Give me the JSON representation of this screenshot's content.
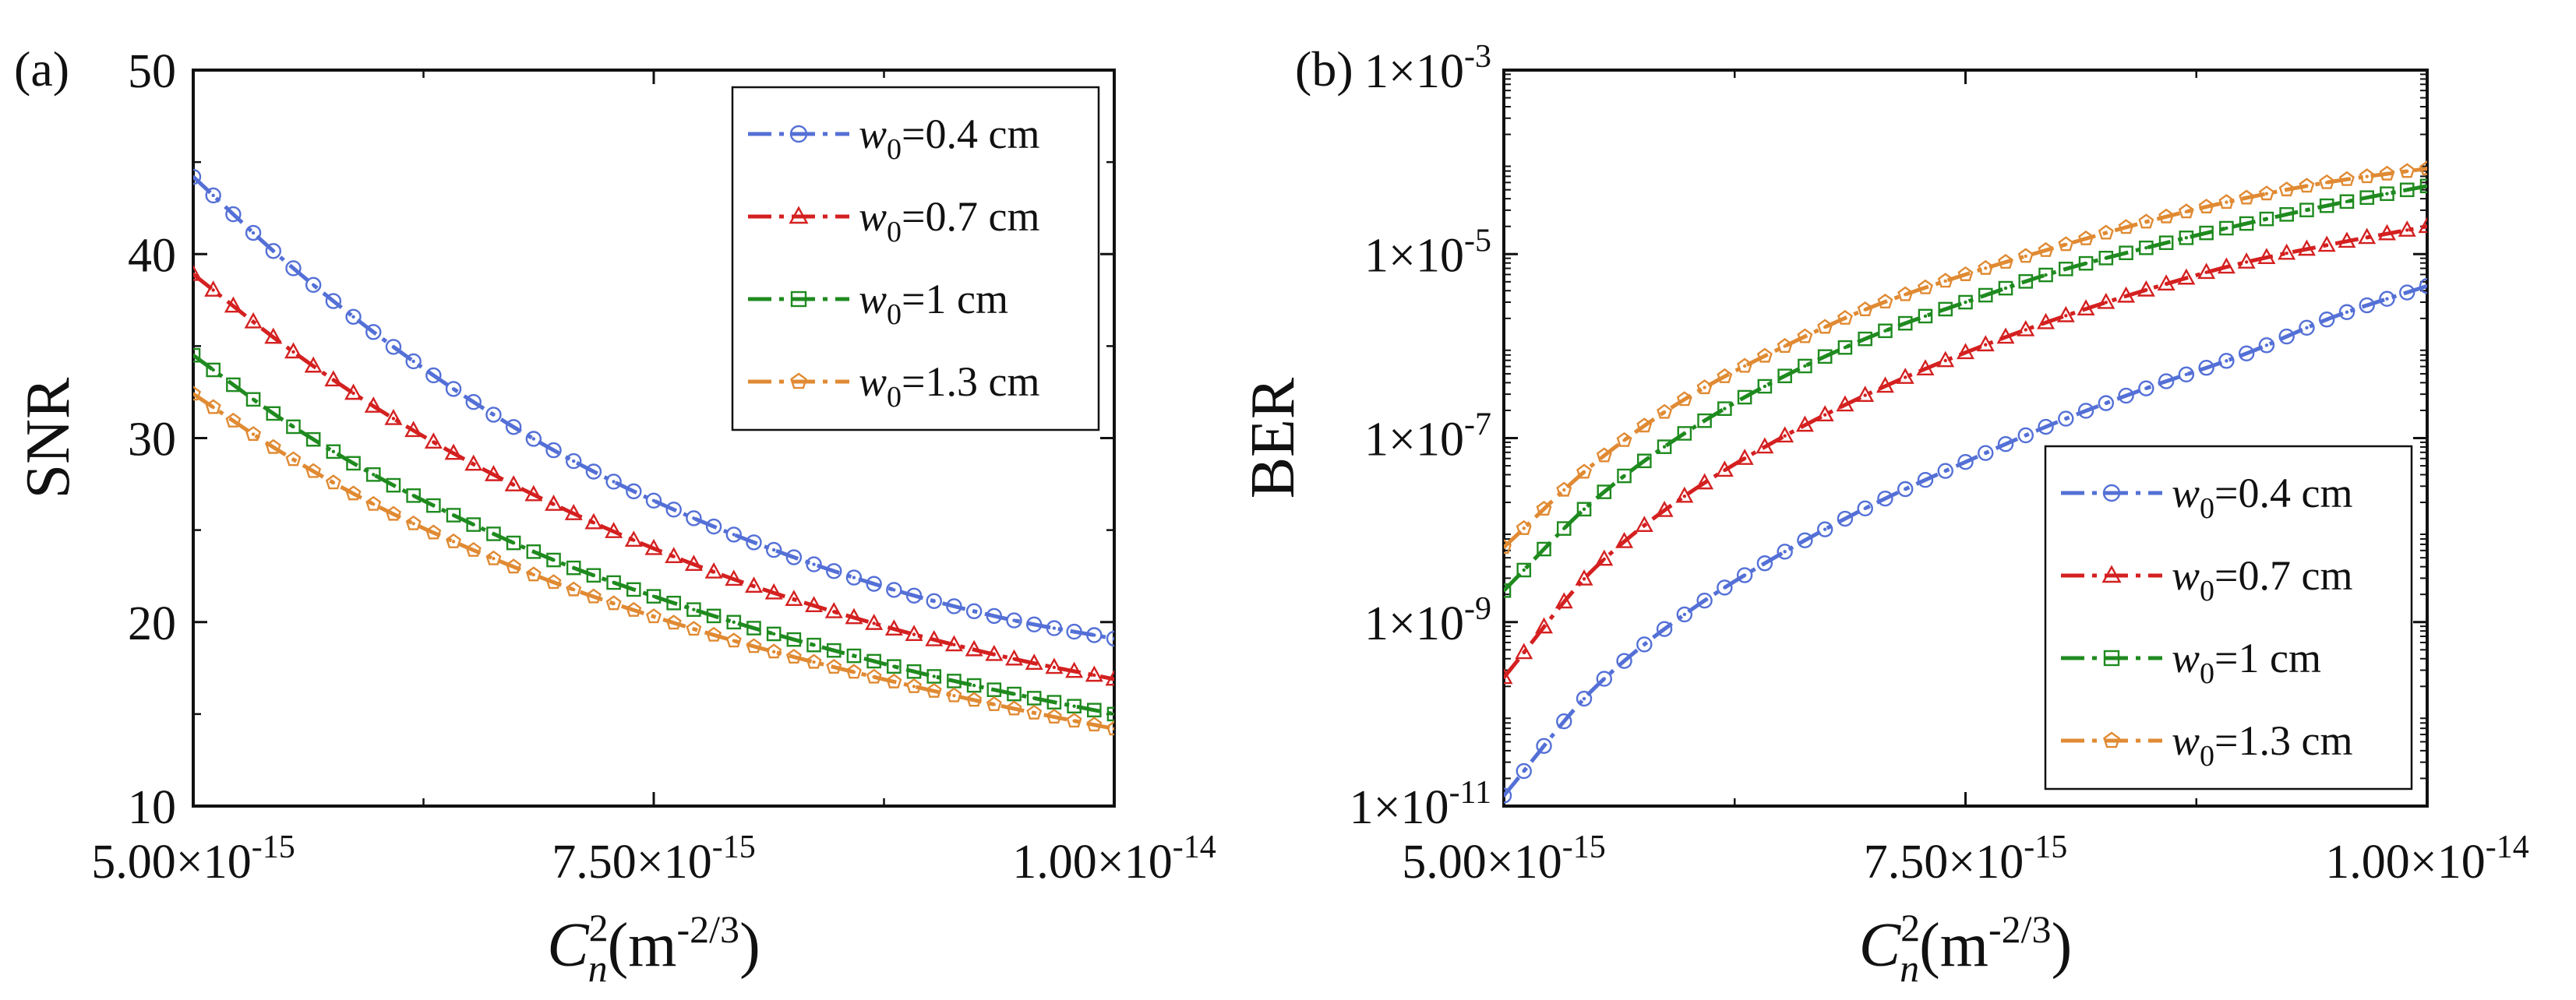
{
  "figure": {
    "panels": [
      "(a)",
      "(b)"
    ]
  },
  "chart_data": [
    {
      "panel_label": "(a)",
      "type": "line",
      "ylabel": "SNR",
      "xlabel": {
        "base": "C",
        "sub": "n",
        "sup": "2",
        "unit_text": "(m",
        "unit_exp": "-2/3",
        "unit_close": ")"
      },
      "xlim": [
        5e-15,
        1e-14
      ],
      "ylim": [
        10,
        50
      ],
      "yscale": "linear",
      "x_ticks": [
        5e-15,
        7.5e-15,
        1e-14
      ],
      "x_tick_labels": [
        {
          "mant": "5.00×10",
          "exp": "-15"
        },
        {
          "mant": "7.50×10",
          "exp": "-15"
        },
        {
          "mant": "1.00×10",
          "exp": "-14"
        }
      ],
      "y_ticks": [
        10,
        20,
        30,
        40,
        50
      ],
      "y_tick_labels": [
        "10",
        "20",
        "30",
        "40",
        "50"
      ],
      "legend_position": "top-right",
      "x": [
        5e-15,
        5.5e-15,
        6e-15,
        6.5e-15,
        7e-15,
        7.5e-15,
        8e-15,
        8.5e-15,
        9e-15,
        9.5e-15,
        1e-14
      ],
      "series": [
        {
          "name": "w0=0.4 cm",
          "legend": {
            "var": "w",
            "sub": "0",
            "rest": "=0.4 cm"
          },
          "color": "#5470d6",
          "marker": "circle",
          "values": [
            44.2,
            39.6,
            35.6,
            32.1,
            29.1,
            26.6,
            24.5,
            22.7,
            21.2,
            20.0,
            19.1
          ]
        },
        {
          "name": "w0=0.7 cm",
          "legend": {
            "var": "w",
            "sub": "0",
            "rest": "=0.7 cm"
          },
          "color": "#d42020",
          "marker": "triangle",
          "values": [
            38.9,
            35.0,
            31.6,
            28.7,
            26.2,
            24.0,
            22.1,
            20.5,
            19.1,
            17.9,
            16.9
          ]
        },
        {
          "name": "w0=1 cm",
          "legend": {
            "var": "w",
            "sub": "0",
            "rest": "=1 cm"
          },
          "color": "#1f8a1f",
          "marker": "square",
          "values": [
            34.5,
            30.9,
            27.9,
            25.4,
            23.2,
            21.4,
            19.8,
            18.4,
            17.1,
            16.0,
            15.0
          ]
        },
        {
          "name": "w0=1.3 cm",
          "legend": {
            "var": "w",
            "sub": "0",
            "rest": "=1.3 cm"
          },
          "color": "#e08a33",
          "marker": "pentagon",
          "values": [
            32.4,
            29.1,
            26.3,
            24.0,
            22.0,
            20.3,
            18.8,
            17.5,
            16.3,
            15.2,
            14.2
          ]
        }
      ]
    },
    {
      "panel_label": "(b)",
      "type": "line",
      "ylabel": "BER",
      "xlabel": {
        "base": "C",
        "sub": "n",
        "sup": "2",
        "unit_text": "(m",
        "unit_exp": "-2/3",
        "unit_close": ")"
      },
      "xlim": [
        5e-15,
        1e-14
      ],
      "ylim": [
        1e-11,
        0.001
      ],
      "yscale": "log",
      "x_ticks": [
        5e-15,
        7.5e-15,
        1e-14
      ],
      "x_tick_labels": [
        {
          "mant": "5.00×10",
          "exp": "-15"
        },
        {
          "mant": "7.50×10",
          "exp": "-15"
        },
        {
          "mant": "1.00×10",
          "exp": "-14"
        }
      ],
      "y_ticks": [
        1e-11,
        1e-09,
        1e-07,
        1e-05,
        0.001
      ],
      "y_tick_labels": [
        {
          "mant": "1×10",
          "exp": "-11"
        },
        {
          "mant": "1×10",
          "exp": "-9"
        },
        {
          "mant": "1×10",
          "exp": "-7"
        },
        {
          "mant": "1×10",
          "exp": "-5"
        },
        {
          "mant": "1×10",
          "exp": "-3"
        }
      ],
      "legend_position": "bottom-right",
      "x": [
        5e-15,
        5.5e-15,
        6e-15,
        6.5e-15,
        7e-15,
        7.5e-15,
        8e-15,
        8.5e-15,
        9e-15,
        9.5e-15,
        1e-14
      ],
      "series": [
        {
          "name": "w0=0.4 cm",
          "legend": {
            "var": "w",
            "sub": "0",
            "rest": "=0.4 cm"
          },
          "color": "#5470d6",
          "marker": "circle",
          "values": [
            1.3e-11,
            2e-10,
            1.3e-09,
            5.5e-09,
            1.9e-08,
            5.5e-08,
            1.5e-07,
            3.6e-07,
            8e-07,
            2.1e-06,
            4.5e-06
          ]
        },
        {
          "name": "w0=0.7 cm",
          "legend": {
            "var": "w",
            "sub": "0",
            "rest": "=0.7 cm"
          },
          "color": "#d42020",
          "marker": "triangle",
          "values": [
            2.5e-10,
            4e-09,
            2.5e-08,
            1e-07,
            3.2e-07,
            8.5e-07,
            2e-06,
            4.2e-06,
            8e-06,
            1.3e-05,
            2e-05
          ]
        },
        {
          "name": "w0=1 cm",
          "legend": {
            "var": "w",
            "sub": "0",
            "rest": "=1 cm"
          },
          "color": "#1f8a1f",
          "marker": "square",
          "values": [
            2.2e-09,
            2.2e-08,
            1.2e-07,
            4.5e-07,
            1.3e-06,
            3e-06,
            6.5e-06,
            1.2e-05,
            2.1e-05,
            3.5e-05,
            5.5e-05
          ]
        },
        {
          "name": "w0=1.3 cm",
          "legend": {
            "var": "w",
            "sub": "0",
            "rest": "=1.3 cm"
          },
          "color": "#e08a33",
          "marker": "pentagon",
          "values": [
            6.5e-09,
            5.5e-08,
            2.8e-07,
            9.5e-07,
            2.7e-06,
            6e-06,
            1.2e-05,
            2.3e-05,
            4e-05,
            6.2e-05,
            8.5e-05
          ]
        }
      ]
    }
  ]
}
